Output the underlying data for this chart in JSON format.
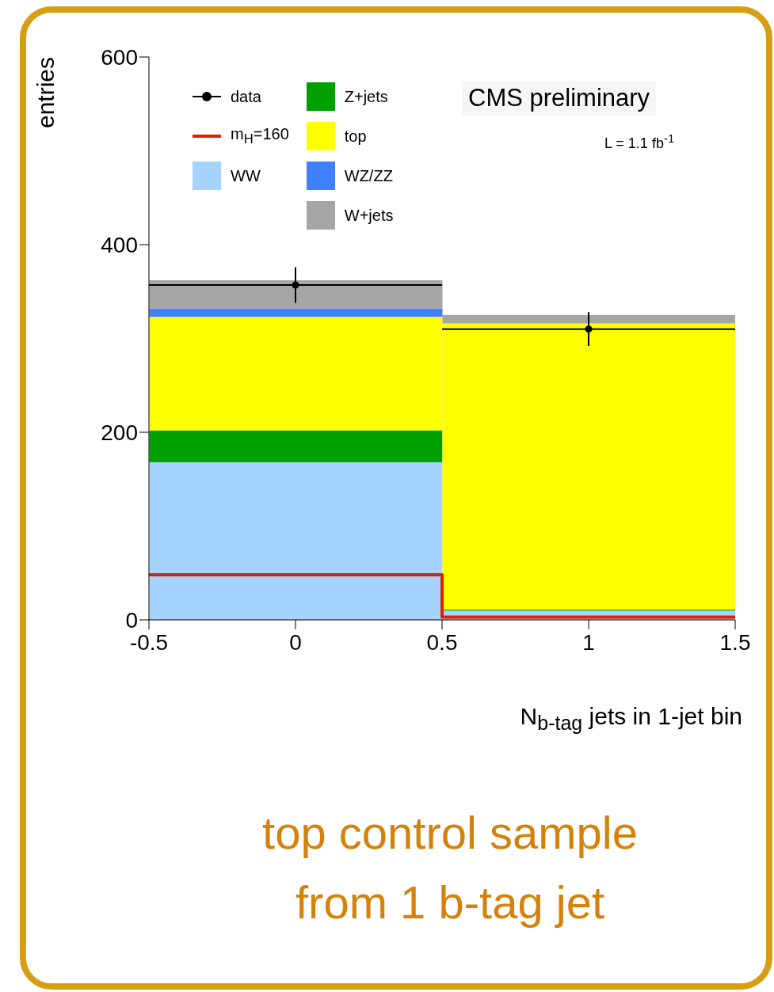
{
  "chart_data": {
    "type": "bar",
    "stacked": true,
    "x": [
      0,
      1
    ],
    "xlim": [
      -0.5,
      1.5
    ],
    "xticks": [
      -0.5,
      0,
      0.5,
      1,
      1.5
    ],
    "ylim": [
      0,
      600
    ],
    "yticks": [
      0,
      200,
      400,
      600
    ],
    "xlabel": "N$_{b-tag}$ jets in 1-jet bin",
    "ylabel": "entries",
    "legend": "top left",
    "grid": false,
    "series": [
      {
        "name": "WW",
        "color": "#a6d4ff",
        "values": [
          168,
          10
        ]
      },
      {
        "name": "Z+jets",
        "color": "#00a000",
        "values": [
          34,
          1
        ]
      },
      {
        "name": "top",
        "color": "#ffff00",
        "values": [
          121,
          305
        ]
      },
      {
        "name": "WZ/ZZ",
        "color": "#4080ff",
        "values": [
          9,
          0
        ]
      },
      {
        "name": "W+jets",
        "color": "#a6a6a6",
        "values": [
          30,
          9
        ]
      },
      {
        "name": "data",
        "type": "scatter",
        "color": "#000000",
        "marker": "circle",
        "values": [
          357,
          310
        ],
        "errors": [
          19,
          18
        ],
        "xerrors": [
          0.5,
          0.5
        ]
      },
      {
        "name": "m$_{H}$=160",
        "type": "step",
        "color": "#dd2200",
        "x": [
          -0.5,
          0.5,
          1.5
        ],
        "values": [
          48,
          3,
          3
        ]
      }
    ],
    "annotations": [
      "CMS preliminary",
      "L = 1.1 fb$^{-1}$",
      "top control sample from 1 b-tag jet"
    ]
  }
}
